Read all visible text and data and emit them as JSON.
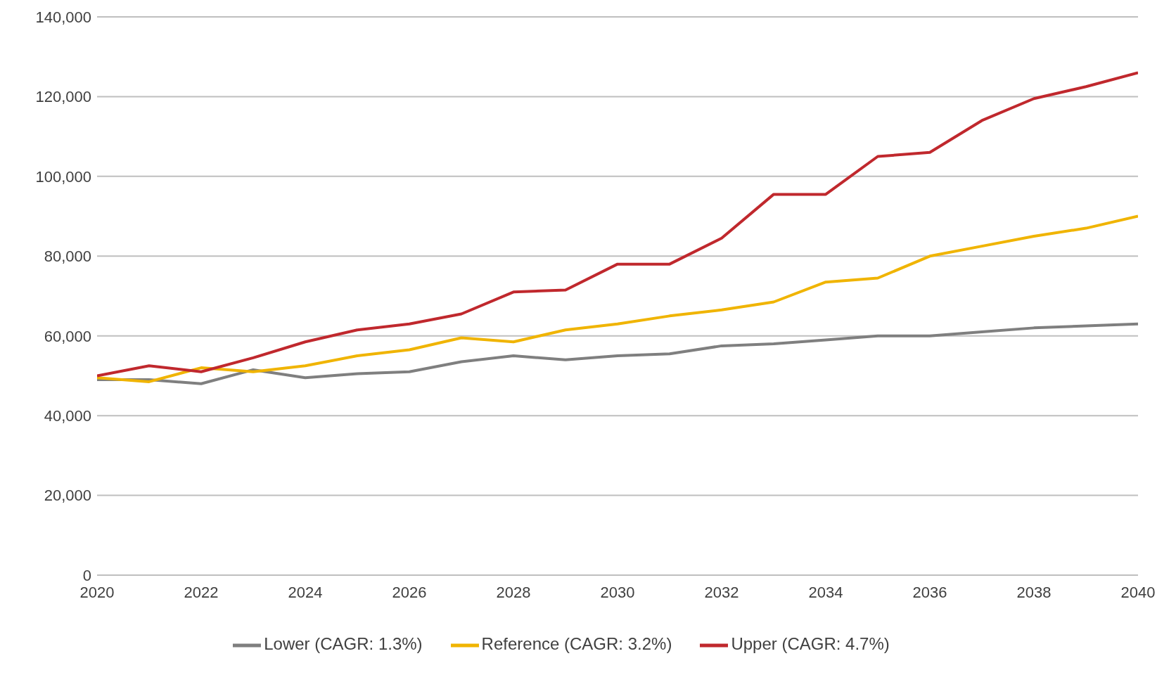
{
  "chart_data": {
    "type": "line",
    "x": [
      2020,
      2021,
      2022,
      2023,
      2024,
      2025,
      2026,
      2027,
      2028,
      2029,
      2030,
      2031,
      2032,
      2033,
      2034,
      2035,
      2036,
      2037,
      2038,
      2039,
      2040
    ],
    "series": [
      {
        "name": "Lower (CAGR: 1.3%)",
        "color": "#7f7f7f",
        "values": [
          49000,
          49000,
          48000,
          51500,
          49500,
          50500,
          51000,
          53500,
          55000,
          54000,
          55000,
          55500,
          57500,
          58000,
          59000,
          60000,
          60000,
          61000,
          62000,
          62500,
          63000
        ]
      },
      {
        "name": "Reference (CAGR: 3.2%)",
        "color": "#f0b400",
        "values": [
          49500,
          48500,
          52000,
          51000,
          52500,
          55000,
          56500,
          59500,
          58500,
          61500,
          63000,
          65000,
          66500,
          68500,
          73500,
          74500,
          80000,
          82500,
          85000,
          87000,
          90000
        ]
      },
      {
        "name": "Upper (CAGR: 4.7%)",
        "color": "#c0282d",
        "values": [
          50000,
          52500,
          51000,
          54500,
          58500,
          61500,
          63000,
          65500,
          71000,
          71500,
          78000,
          78000,
          84500,
          95500,
          95500,
          105000,
          106000,
          114000,
          119500,
          122500,
          126000
        ]
      }
    ],
    "xlim": [
      2020,
      2040
    ],
    "xticks": [
      2020,
      2022,
      2024,
      2026,
      2028,
      2030,
      2032,
      2034,
      2036,
      2038,
      2040
    ],
    "ylim": [
      0,
      140000
    ],
    "yticks": [
      0,
      {
        "value": 20000,
        "label": "20,000"
      },
      {
        "value": 40000,
        "label": "40,000"
      },
      {
        "value": 60000,
        "label": "60,000"
      },
      {
        "value": 80000,
        "label": "80,000"
      },
      {
        "value": 100000,
        "label": "100,000"
      },
      {
        "value": 120000,
        "label": "120,000"
      },
      {
        "value": 140000,
        "label": "140,000"
      }
    ],
    "grid": "y",
    "legend": "bottom",
    "marker": "none",
    "line_style": "solid"
  }
}
